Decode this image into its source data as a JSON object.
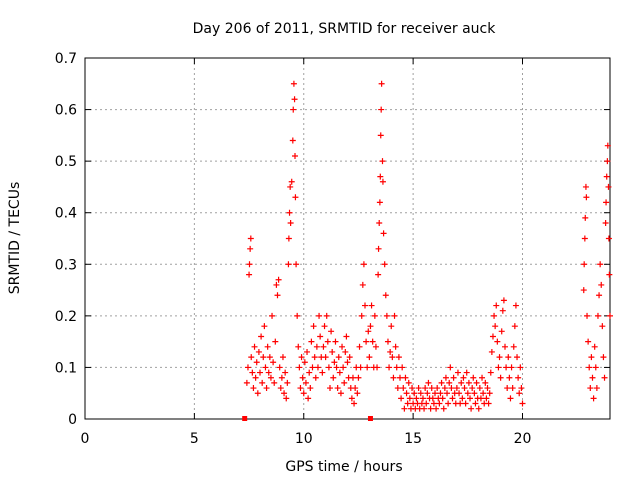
{
  "chart_data": {
    "type": "scatter",
    "title": "Day 206 of 2011, SRMTID for receiver auck",
    "xlabel": "GPS time / hours",
    "ylabel": "SRMTID / TECUs",
    "xlim": [
      0,
      24
    ],
    "ylim": [
      0,
      0.7
    ],
    "x_ticks": [
      "0",
      "5",
      "10",
      "15",
      "20"
    ],
    "x_tick_values": [
      0,
      5,
      10,
      15,
      20
    ],
    "y_ticks": [
      "0",
      "0.1",
      "0.2",
      "0.3",
      "0.4",
      "0.5",
      "0.6",
      "0.7"
    ],
    "y_tick_values": [
      0,
      0.1,
      0.2,
      0.3,
      0.4,
      0.5,
      0.6,
      0.7
    ],
    "grid": true,
    "marker": "+",
    "color": "#ff0000",
    "baseline_markers": [
      7.3,
      13.05
    ],
    "series": [
      {
        "name": "SRMTID",
        "points": [
          [
            7.4,
            0.07
          ],
          [
            7.45,
            0.1
          ],
          [
            7.5,
            0.28
          ],
          [
            7.52,
            0.3
          ],
          [
            7.55,
            0.33
          ],
          [
            7.58,
            0.35
          ],
          [
            7.6,
            0.12
          ],
          [
            7.65,
            0.09
          ],
          [
            7.7,
            0.06
          ],
          [
            7.75,
            0.14
          ],
          [
            7.8,
            0.08
          ],
          [
            7.85,
            0.11
          ],
          [
            7.9,
            0.05
          ],
          [
            7.95,
            0.13
          ],
          [
            8.0,
            0.09
          ],
          [
            8.05,
            0.16
          ],
          [
            8.1,
            0.07
          ],
          [
            8.15,
            0.12
          ],
          [
            8.2,
            0.18
          ],
          [
            8.25,
            0.1
          ],
          [
            8.3,
            0.06
          ],
          [
            8.35,
            0.14
          ],
          [
            8.4,
            0.09
          ],
          [
            8.45,
            0.12
          ],
          [
            8.5,
            0.08
          ],
          [
            8.55,
            0.2
          ],
          [
            8.6,
            0.11
          ],
          [
            8.65,
            0.07
          ],
          [
            8.7,
            0.15
          ],
          [
            8.75,
            0.26
          ],
          [
            8.8,
            0.24
          ],
          [
            8.85,
            0.27
          ],
          [
            8.9,
            0.1
          ],
          [
            8.95,
            0.06
          ],
          [
            9.0,
            0.08
          ],
          [
            9.05,
            0.12
          ],
          [
            9.1,
            0.05
          ],
          [
            9.15,
            0.09
          ],
          [
            9.2,
            0.04
          ],
          [
            9.25,
            0.07
          ],
          [
            9.3,
            0.3
          ],
          [
            9.32,
            0.35
          ],
          [
            9.35,
            0.4
          ],
          [
            9.38,
            0.45
          ],
          [
            9.4,
            0.38
          ],
          [
            9.45,
            0.46
          ],
          [
            9.5,
            0.54
          ],
          [
            9.52,
            0.6
          ],
          [
            9.55,
            0.65
          ],
          [
            9.58,
            0.62
          ],
          [
            9.6,
            0.51
          ],
          [
            9.62,
            0.43
          ],
          [
            9.65,
            0.3
          ],
          [
            9.7,
            0.2
          ],
          [
            9.75,
            0.14
          ],
          [
            9.8,
            0.1
          ],
          [
            9.85,
            0.06
          ],
          [
            9.9,
            0.12
          ],
          [
            9.95,
            0.08
          ],
          [
            10.0,
            0.05
          ],
          [
            10.05,
            0.11
          ],
          [
            10.1,
            0.07
          ],
          [
            10.15,
            0.13
          ],
          [
            10.2,
            0.04
          ],
          [
            10.25,
            0.09
          ],
          [
            10.3,
            0.06
          ],
          [
            10.35,
            0.15
          ],
          [
            10.4,
            0.1
          ],
          [
            10.45,
            0.18
          ],
          [
            10.5,
            0.12
          ],
          [
            10.55,
            0.08
          ],
          [
            10.6,
            0.14
          ],
          [
            10.65,
            0.1
          ],
          [
            10.7,
            0.2
          ],
          [
            10.75,
            0.16
          ],
          [
            10.8,
            0.12
          ],
          [
            10.85,
            0.09
          ],
          [
            10.9,
            0.14
          ],
          [
            10.95,
            0.18
          ],
          [
            11.0,
            0.12
          ],
          [
            11.05,
            0.2
          ],
          [
            11.1,
            0.15
          ],
          [
            11.15,
            0.1
          ],
          [
            11.2,
            0.06
          ],
          [
            11.25,
            0.17
          ],
          [
            11.3,
            0.13
          ],
          [
            11.35,
            0.08
          ],
          [
            11.4,
            0.11
          ],
          [
            11.45,
            0.15
          ],
          [
            11.5,
            0.1
          ],
          [
            11.55,
            0.06
          ],
          [
            11.6,
            0.12
          ],
          [
            11.65,
            0.09
          ],
          [
            11.7,
            0.05
          ],
          [
            11.75,
            0.14
          ],
          [
            11.8,
            0.1
          ],
          [
            11.85,
            0.07
          ],
          [
            11.9,
            0.13
          ],
          [
            11.95,
            0.16
          ],
          [
            12.0,
            0.11
          ],
          [
            12.05,
            0.08
          ],
          [
            12.1,
            0.12
          ],
          [
            12.15,
            0.06
          ],
          [
            12.2,
            0.04
          ],
          [
            12.25,
            0.08
          ],
          [
            12.3,
            0.03
          ],
          [
            12.35,
            0.06
          ],
          [
            12.4,
            0.1
          ],
          [
            12.45,
            0.05
          ],
          [
            12.5,
            0.08
          ],
          [
            12.55,
            0.14
          ],
          [
            12.6,
            0.1
          ],
          [
            12.65,
            0.2
          ],
          [
            12.7,
            0.26
          ],
          [
            12.75,
            0.3
          ],
          [
            12.8,
            0.22
          ],
          [
            12.85,
            0.15
          ],
          [
            12.9,
            0.1
          ],
          [
            12.95,
            0.17
          ],
          [
            13.0,
            0.12
          ],
          [
            13.05,
            0.18
          ],
          [
            13.1,
            0.22
          ],
          [
            13.15,
            0.15
          ],
          [
            13.2,
            0.1
          ],
          [
            13.25,
            0.2
          ],
          [
            13.3,
            0.14
          ],
          [
            13.35,
            0.1
          ],
          [
            13.4,
            0.28
          ],
          [
            13.42,
            0.33
          ],
          [
            13.45,
            0.38
          ],
          [
            13.48,
            0.42
          ],
          [
            13.5,
            0.47
          ],
          [
            13.52,
            0.55
          ],
          [
            13.54,
            0.6
          ],
          [
            13.56,
            0.65
          ],
          [
            13.6,
            0.5
          ],
          [
            13.62,
            0.46
          ],
          [
            13.65,
            0.36
          ],
          [
            13.7,
            0.3
          ],
          [
            13.75,
            0.24
          ],
          [
            13.8,
            0.2
          ],
          [
            13.85,
            0.15
          ],
          [
            13.9,
            0.1
          ],
          [
            13.95,
            0.13
          ],
          [
            14.0,
            0.18
          ],
          [
            14.05,
            0.12
          ],
          [
            14.1,
            0.08
          ],
          [
            14.15,
            0.2
          ],
          [
            14.2,
            0.14
          ],
          [
            14.25,
            0.1
          ],
          [
            14.3,
            0.06
          ],
          [
            14.35,
            0.12
          ],
          [
            14.4,
            0.08
          ],
          [
            14.45,
            0.04
          ],
          [
            14.5,
            0.1
          ],
          [
            14.55,
            0.06
          ],
          [
            14.6,
            0.02
          ],
          [
            14.65,
            0.08
          ],
          [
            14.7,
            0.05
          ],
          [
            14.75,
            0.03
          ],
          [
            14.8,
            0.07
          ],
          [
            14.85,
            0.04
          ],
          [
            14.9,
            0.02
          ],
          [
            14.95,
            0.06
          ],
          [
            15.0,
            0.03
          ],
          [
            15.05,
            0.05
          ],
          [
            15.1,
            0.02
          ],
          [
            15.15,
            0.04
          ],
          [
            15.2,
            0.03
          ],
          [
            15.25,
            0.06
          ],
          [
            15.3,
            0.02
          ],
          [
            15.35,
            0.05
          ],
          [
            15.4,
            0.03
          ],
          [
            15.45,
            0.04
          ],
          [
            15.5,
            0.02
          ],
          [
            15.55,
            0.06
          ],
          [
            15.6,
            0.03
          ],
          [
            15.65,
            0.05
          ],
          [
            15.7,
            0.07
          ],
          [
            15.75,
            0.04
          ],
          [
            15.8,
            0.02
          ],
          [
            15.85,
            0.06
          ],
          [
            15.9,
            0.04
          ],
          [
            15.95,
            0.03
          ],
          [
            16.0,
            0.05
          ],
          [
            16.05,
            0.02
          ],
          [
            16.1,
            0.06
          ],
          [
            16.15,
            0.04
          ],
          [
            16.2,
            0.03
          ],
          [
            16.25,
            0.05
          ],
          [
            16.3,
            0.07
          ],
          [
            16.35,
            0.04
          ],
          [
            16.4,
            0.02
          ],
          [
            16.45,
            0.06
          ],
          [
            16.5,
            0.08
          ],
          [
            16.55,
            0.05
          ],
          [
            16.6,
            0.03
          ],
          [
            16.65,
            0.07
          ],
          [
            16.7,
            0.1
          ],
          [
            16.75,
            0.06
          ],
          [
            16.8,
            0.04
          ],
          [
            16.85,
            0.08
          ],
          [
            16.9,
            0.05
          ],
          [
            16.95,
            0.03
          ],
          [
            17.0,
            0.06
          ],
          [
            17.05,
            0.09
          ],
          [
            17.1,
            0.05
          ],
          [
            17.15,
            0.03
          ],
          [
            17.2,
            0.07
          ],
          [
            17.25,
            0.04
          ],
          [
            17.3,
            0.08
          ],
          [
            17.35,
            0.06
          ],
          [
            17.4,
            0.03
          ],
          [
            17.45,
            0.09
          ],
          [
            17.5,
            0.05
          ],
          [
            17.55,
            0.07
          ],
          [
            17.6,
            0.04
          ],
          [
            17.65,
            0.02
          ],
          [
            17.7,
            0.06
          ],
          [
            17.75,
            0.08
          ],
          [
            17.8,
            0.05
          ],
          [
            17.85,
            0.03
          ],
          [
            17.9,
            0.07
          ],
          [
            17.95,
            0.04
          ],
          [
            18.0,
            0.02
          ],
          [
            18.05,
            0.06
          ],
          [
            18.1,
            0.04
          ],
          [
            18.15,
            0.08
          ],
          [
            18.2,
            0.05
          ],
          [
            18.25,
            0.03
          ],
          [
            18.3,
            0.07
          ],
          [
            18.35,
            0.04
          ],
          [
            18.4,
            0.06
          ],
          [
            18.45,
            0.03
          ],
          [
            18.5,
            0.05
          ],
          [
            18.55,
            0.09
          ],
          [
            18.6,
            0.13
          ],
          [
            18.65,
            0.16
          ],
          [
            18.7,
            0.2
          ],
          [
            18.75,
            0.18
          ],
          [
            18.8,
            0.22
          ],
          [
            18.85,
            0.15
          ],
          [
            18.9,
            0.1
          ],
          [
            18.95,
            0.12
          ],
          [
            19.0,
            0.08
          ],
          [
            19.05,
            0.17
          ],
          [
            19.1,
            0.21
          ],
          [
            19.15,
            0.23
          ],
          [
            19.2,
            0.14
          ],
          [
            19.25,
            0.1
          ],
          [
            19.3,
            0.06
          ],
          [
            19.35,
            0.12
          ],
          [
            19.4,
            0.08
          ],
          [
            19.45,
            0.04
          ],
          [
            19.5,
            0.1
          ],
          [
            19.55,
            0.06
          ],
          [
            19.6,
            0.14
          ],
          [
            19.65,
            0.18
          ],
          [
            19.7,
            0.22
          ],
          [
            19.75,
            0.12
          ],
          [
            19.8,
            0.08
          ],
          [
            19.85,
            0.05
          ],
          [
            19.9,
            0.1
          ],
          [
            19.95,
            0.06
          ],
          [
            20.0,
            0.03
          ],
          [
            22.8,
            0.25
          ],
          [
            22.82,
            0.3
          ],
          [
            22.85,
            0.35
          ],
          [
            22.87,
            0.39
          ],
          [
            22.9,
            0.45
          ],
          [
            22.92,
            0.43
          ],
          [
            22.95,
            0.2
          ],
          [
            23.0,
            0.15
          ],
          [
            23.05,
            0.1
          ],
          [
            23.1,
            0.06
          ],
          [
            23.15,
            0.12
          ],
          [
            23.2,
            0.08
          ],
          [
            23.25,
            0.04
          ],
          [
            23.3,
            0.14
          ],
          [
            23.35,
            0.1
          ],
          [
            23.4,
            0.06
          ],
          [
            23.45,
            0.2
          ],
          [
            23.5,
            0.24
          ],
          [
            23.55,
            0.3
          ],
          [
            23.6,
            0.26
          ],
          [
            23.65,
            0.18
          ],
          [
            23.7,
            0.12
          ],
          [
            23.75,
            0.08
          ],
          [
            23.8,
            0.38
          ],
          [
            23.82,
            0.42
          ],
          [
            23.85,
            0.47
          ],
          [
            23.88,
            0.5
          ],
          [
            23.9,
            0.53
          ],
          [
            23.93,
            0.45
          ],
          [
            23.95,
            0.35
          ],
          [
            23.97,
            0.28
          ],
          [
            24.0,
            0.2
          ]
        ]
      }
    ]
  }
}
